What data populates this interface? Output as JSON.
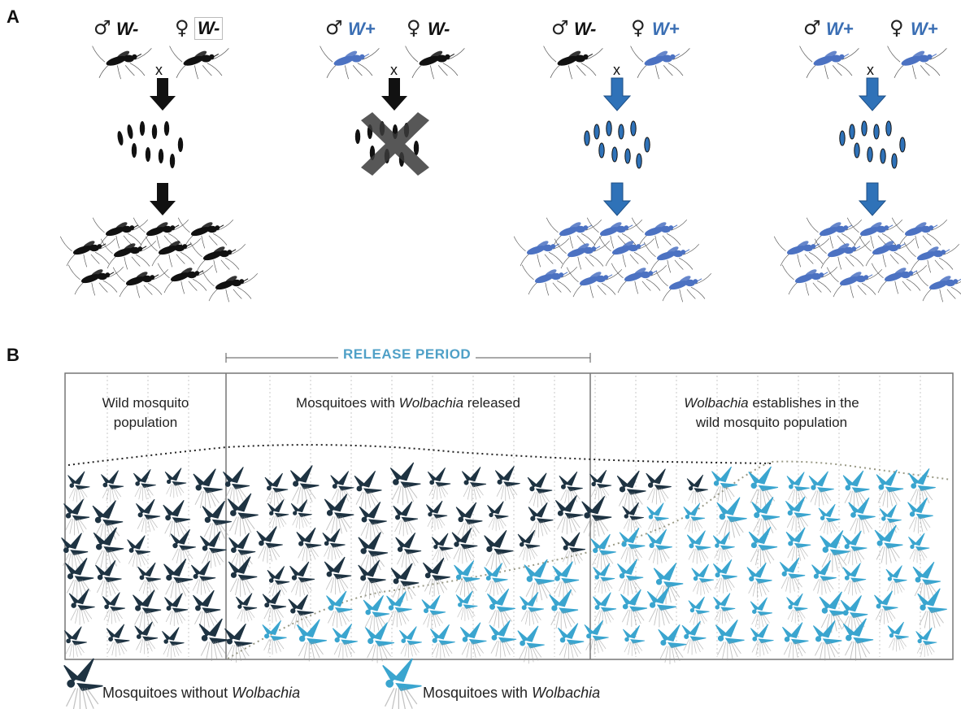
{
  "panel_a": {
    "letter": "A",
    "crosses": [
      {
        "male_symbol": "♂",
        "male_genotype": "W-",
        "female_symbol": "♀",
        "female_genotype": "W-",
        "times": "x",
        "outcome": "black offspring"
      },
      {
        "male_symbol": "♂",
        "male_genotype": "W+",
        "female_symbol": "♀",
        "female_genotype": "W-",
        "times": "x",
        "outcome": "no offspring"
      },
      {
        "male_symbol": "♂",
        "male_genotype": "W-",
        "female_symbol": "♀",
        "female_genotype": "W+",
        "times": "x",
        "outcome": "blue offspring"
      },
      {
        "male_symbol": "♂",
        "male_genotype": "W+",
        "female_symbol": "♀",
        "female_genotype": "W+",
        "times": "x",
        "outcome": "blue offspring"
      }
    ]
  },
  "panel_b": {
    "letter": "B",
    "release_period_label": "RELEASE PERIOD",
    "stages": [
      {
        "line1": "Wild mosquito",
        "line2": "population"
      },
      {
        "pre": "Mosquitoes with ",
        "italic": "Wolbachia",
        "post": " released"
      },
      {
        "italic": "Wolbachia",
        "post": " establishes in the",
        "line2": "wild mosquito population"
      }
    ],
    "legend": [
      {
        "pre": "Mosquitoes without ",
        "italic": "Wolbachia",
        "color": "#1e3342"
      },
      {
        "pre": "Mosquitoes with ",
        "italic": "Wolbachia",
        "color": "#3aa5cf"
      }
    ]
  },
  "colors": {
    "wild": "#1e3342",
    "wolbachia": "#3aa5cf",
    "black_mosquito": "#111111",
    "blue_mosquito": "#4c72c2",
    "blue_arrow": "#2f72b8",
    "genotype_positive": "#3b6fb4"
  }
}
